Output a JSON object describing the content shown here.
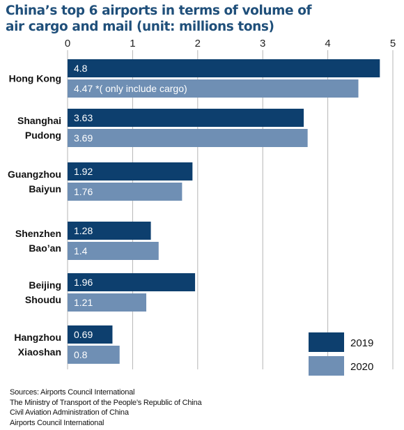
{
  "title_line1": "China’s top 6 airports in terms of volume of",
  "title_line2": "air cargo and mail (unit: millions tons)",
  "colors": {
    "s2019": "#0d3f6e",
    "s2020": "#6f8fb4",
    "grid": "#b5b5b5",
    "title": "#1f4f7a"
  },
  "chart_data": {
    "type": "bar",
    "orientation": "horizontal",
    "title": "China’s top 6 airports in terms of volume of air cargo and mail (unit: millions tons)",
    "xlim": [
      0,
      5
    ],
    "xticks": [
      "0",
      "1",
      "2",
      "3",
      "4",
      "5"
    ],
    "categories": [
      [
        "Hong Kong"
      ],
      [
        "Shanghai",
        "Pudong"
      ],
      [
        "Guangzhou",
        "Baiyun"
      ],
      [
        "Shenzhen",
        "Bao’an"
      ],
      [
        "Beijing",
        "Shoudu"
      ],
      [
        "Hangzhou",
        "Xiaoshan"
      ]
    ],
    "series": [
      {
        "name": "2019",
        "values": [
          4.8,
          3.63,
          1.92,
          1.28,
          1.96,
          0.69
        ],
        "labels": [
          "4.8",
          "3.63",
          "1.92",
          "1.28",
          "1.96",
          "0.69"
        ]
      },
      {
        "name": "2020",
        "values": [
          4.47,
          3.69,
          1.76,
          1.4,
          1.21,
          0.8
        ],
        "labels": [
          "4.47 *( only include cargo)",
          "3.69",
          "1.76",
          "1.4",
          "1.21",
          "0.8"
        ]
      }
    ],
    "grid": true,
    "legend_position": "bottom-right"
  },
  "sources": [
    "Sources: Airports Council International",
    "The Ministry of Transport of the People’s Republic of China",
    "Civil Aviation Administration of China",
    "Airports Council International"
  ]
}
